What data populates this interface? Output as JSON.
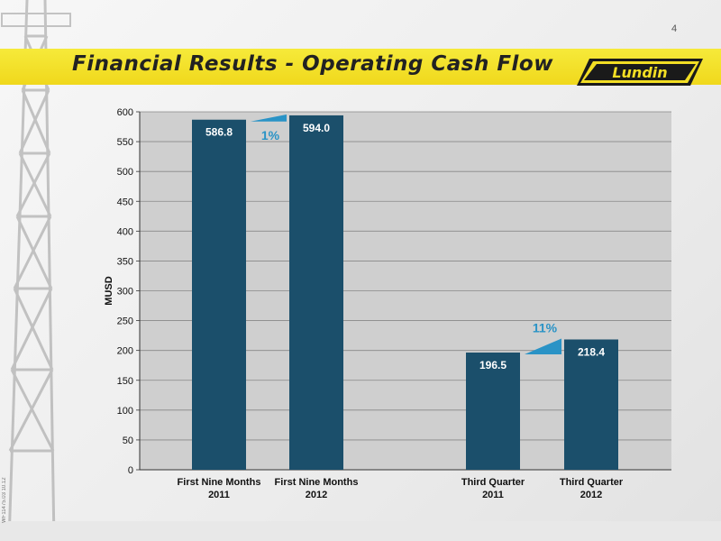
{
  "page_number": "4",
  "title": "Financial Results - Operating Cash Flow",
  "logo_text": "Lundin",
  "side_code": "WF11475.03 10.12",
  "colors": {
    "bar": "#1b4f6b",
    "accent": "#2a93c6",
    "band": "#f2de24",
    "plot_bg": "#cfcfcf"
  },
  "changes": [
    {
      "label": "1%",
      "from_index": 0,
      "to_index": 1
    },
    {
      "label": "11%",
      "from_index": 2,
      "to_index": 3
    }
  ],
  "chart_data": {
    "type": "bar",
    "categories": [
      [
        "First Nine Months",
        "2011"
      ],
      [
        "First Nine Months",
        "2012"
      ],
      [
        "Third Quarter",
        "2011"
      ],
      [
        "Third Quarter",
        "2012"
      ]
    ],
    "values": [
      586.8,
      594.0,
      196.5,
      218.4
    ],
    "value_labels": [
      "586.8",
      "594.0",
      "196.5",
      "218.4"
    ],
    "ylabel": "MUSD",
    "ylim": [
      0,
      600
    ],
    "yticks": [
      0,
      50,
      100,
      150,
      200,
      250,
      300,
      350,
      400,
      450,
      500,
      550,
      600
    ],
    "grid": true
  }
}
